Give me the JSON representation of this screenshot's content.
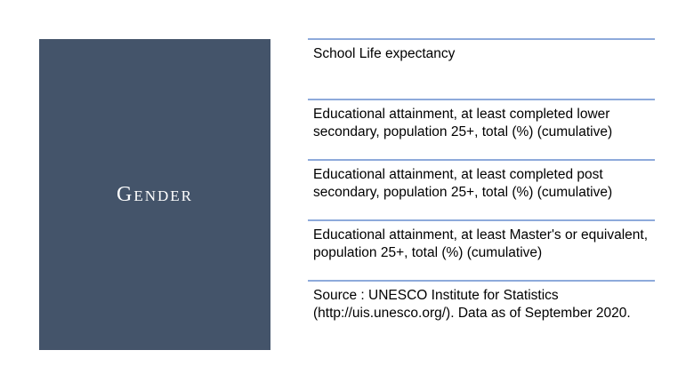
{
  "slide": {
    "title": "Gender",
    "items": [
      "School Life expectancy",
      "Educational attainment, at least completed lower secondary, population 25+, total (%) (cumulative)",
      "Educational attainment, at least completed post secondary, population 25+, total (%) (cumulative)",
      "Educational attainment, at least Master's or equivalent, population 25+, total (%) (cumulative)",
      "Source : UNESCO Institute for Statistics (http://uis.unesco.org/). Data as of September 2020."
    ]
  },
  "colors": {
    "panel": "#44546a",
    "divider": "#8eaadb",
    "text": "#000000"
  }
}
